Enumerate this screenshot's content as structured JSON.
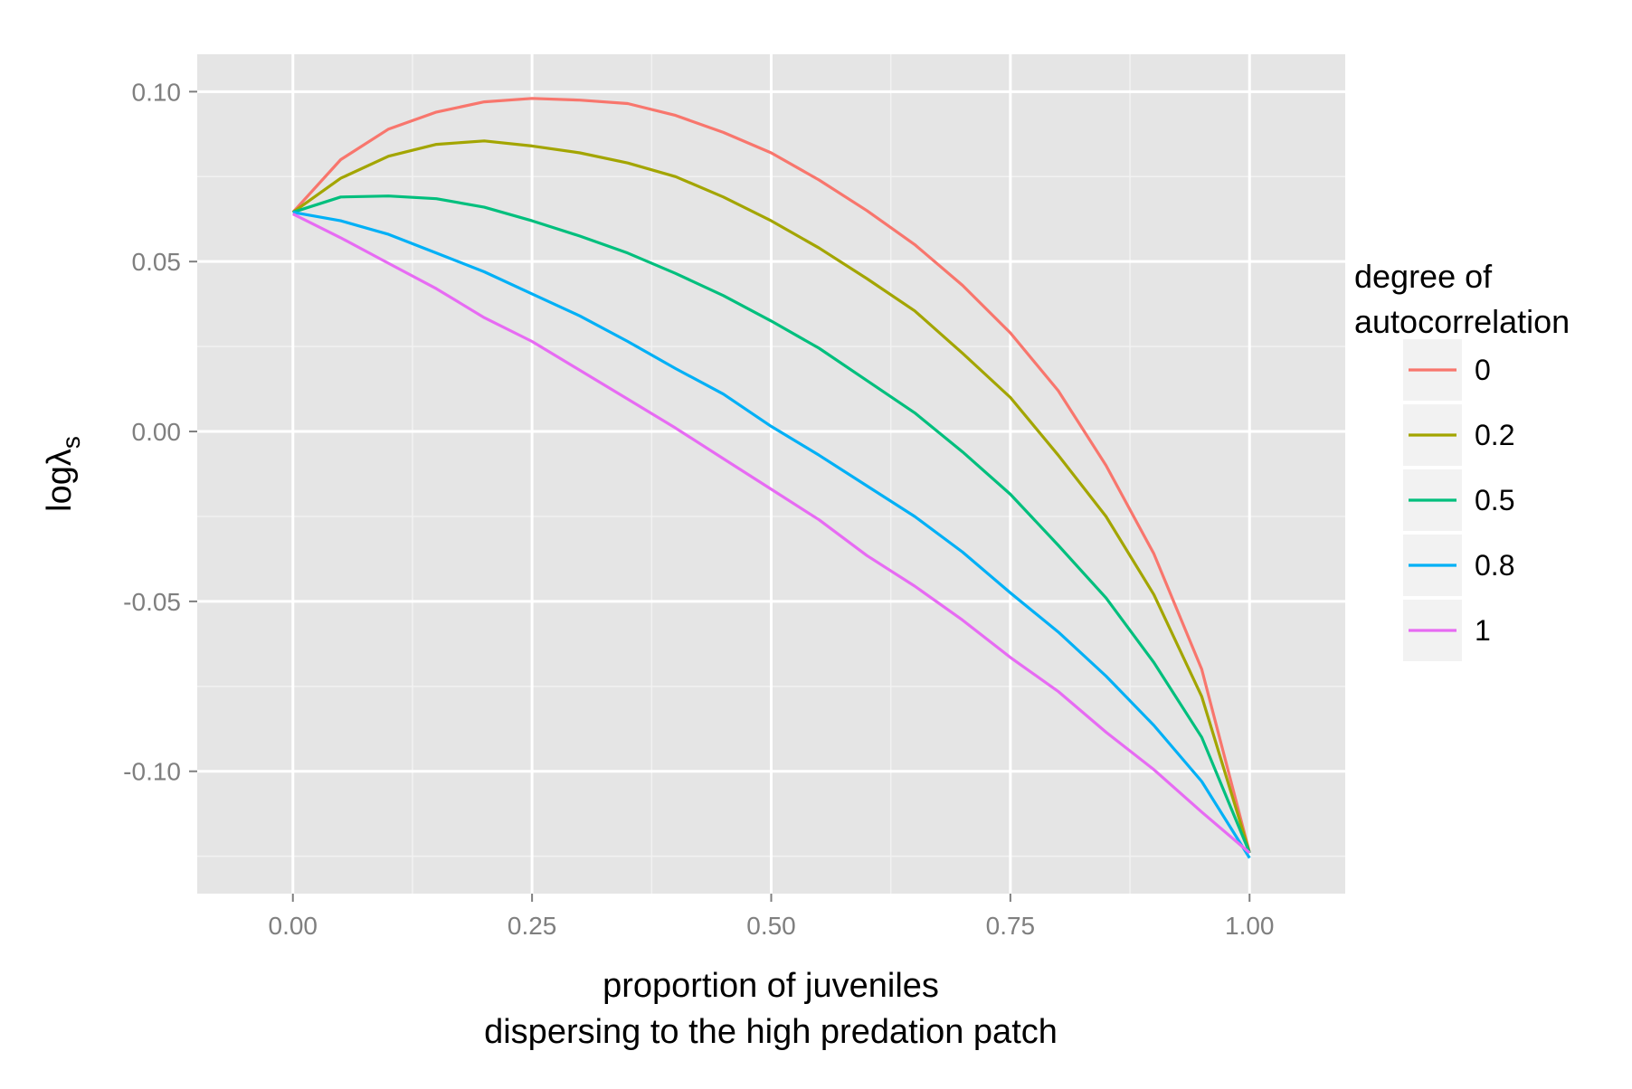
{
  "chart_data": {
    "type": "line",
    "xlabel_lines": [
      "proportion of juveniles",
      "dispersing to the high predation patch"
    ],
    "ylabel_main": "logλ",
    "ylabel_sub": "s",
    "xlim": [
      -0.1,
      1.1
    ],
    "ylim": [
      -0.136,
      0.111
    ],
    "x_ticks": [
      0.0,
      0.25,
      0.5,
      0.75,
      1.0
    ],
    "x_tick_labels": [
      "0.00",
      "0.25",
      "0.50",
      "0.75",
      "1.00"
    ],
    "y_ticks": [
      -0.1,
      -0.05,
      0.0,
      0.05,
      0.1
    ],
    "y_tick_labels": [
      "-0.10",
      "-0.05",
      "0.00",
      "0.05",
      "0.10"
    ],
    "grid": true,
    "legend": {
      "title_lines": [
        "degree of",
        "autocorrelation"
      ],
      "placement": "right"
    },
    "x": [
      0.0,
      0.05,
      0.1,
      0.15,
      0.2,
      0.25,
      0.3,
      0.35,
      0.4,
      0.45,
      0.5,
      0.55,
      0.6,
      0.65,
      0.7,
      0.75,
      0.8,
      0.85,
      0.9,
      0.95,
      1.0
    ],
    "series": [
      {
        "name": "0",
        "color": "#F8766D",
        "values": [
          0.0645,
          0.08,
          0.089,
          0.094,
          0.097,
          0.098,
          0.0975,
          0.0965,
          0.093,
          0.088,
          0.082,
          0.074,
          0.065,
          0.055,
          0.043,
          0.029,
          0.012,
          -0.01,
          -0.036,
          -0.07,
          -0.124
        ]
      },
      {
        "name": "0.2",
        "color": "#A3A500",
        "values": [
          0.0645,
          0.0745,
          0.081,
          0.0845,
          0.0855,
          0.084,
          0.082,
          0.079,
          0.075,
          0.069,
          0.062,
          0.054,
          0.045,
          0.0355,
          0.023,
          0.01,
          -0.007,
          -0.025,
          -0.048,
          -0.078,
          -0.124
        ]
      },
      {
        "name": "0.5",
        "color": "#00BF7D",
        "values": [
          0.0645,
          0.069,
          0.0693,
          0.0685,
          0.066,
          0.062,
          0.0575,
          0.0525,
          0.0465,
          0.04,
          0.0325,
          0.0245,
          0.015,
          0.0055,
          -0.006,
          -0.0185,
          -0.0335,
          -0.049,
          -0.068,
          -0.09,
          -0.124
        ]
      },
      {
        "name": "0.8",
        "color": "#00B0F6",
        "values": [
          0.0645,
          0.062,
          0.058,
          0.0525,
          0.047,
          0.0405,
          0.034,
          0.0265,
          0.0185,
          0.011,
          0.0015,
          -0.007,
          -0.016,
          -0.025,
          -0.0355,
          -0.0475,
          -0.059,
          -0.072,
          -0.0865,
          -0.103,
          -0.1255
        ]
      },
      {
        "name": "1",
        "color": "#E76BF3",
        "values": [
          0.064,
          0.057,
          0.0495,
          0.042,
          0.0335,
          0.0265,
          0.018,
          0.0095,
          0.001,
          -0.008,
          -0.017,
          -0.026,
          -0.0365,
          -0.0455,
          -0.0555,
          -0.0665,
          -0.0765,
          -0.0885,
          -0.0995,
          -0.112,
          -0.124
        ]
      }
    ]
  }
}
